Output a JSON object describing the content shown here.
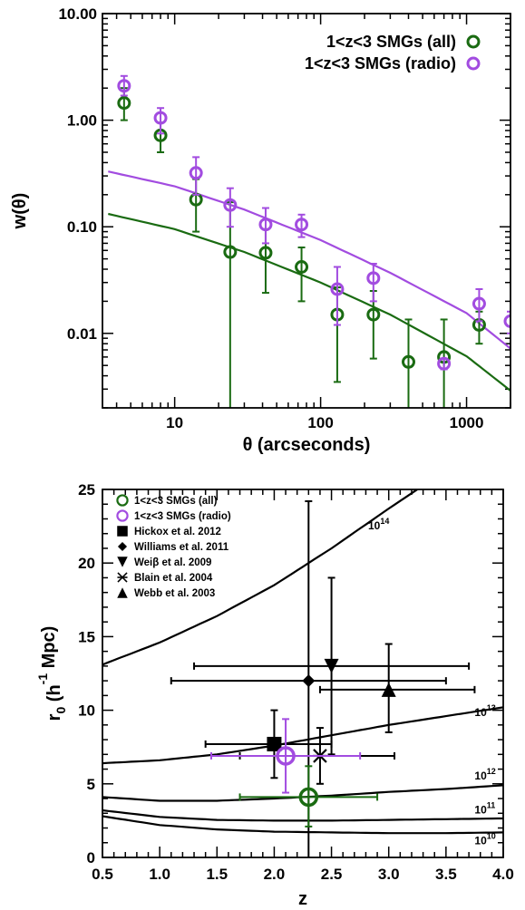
{
  "chart_data": [
    {
      "type": "scatter",
      "xlabel": "θ (arcseconds)",
      "ylabel": "w(θ)",
      "xscale": "log",
      "yscale": "log",
      "xlim": [
        3.2,
        2000
      ],
      "ylim": [
        0.002,
        10
      ],
      "xticks": [
        {
          "v": 10,
          "label": "10"
        },
        {
          "v": 100,
          "label": "100"
        },
        {
          "v": 1000,
          "label": "1000"
        }
      ],
      "yticks": [
        {
          "v": 10,
          "label": "10.00"
        },
        {
          "v": 1,
          "label": "1.00"
        },
        {
          "v": 0.1,
          "label": "0.10"
        },
        {
          "v": 0.01,
          "label": "0.01"
        }
      ],
      "legend_position": "top-right",
      "series": [
        {
          "name": "1<z<3 SMGs (all)",
          "color": "#1a6b12",
          "points": [
            {
              "x": 4.5,
              "y": 1.45,
              "ylo": 1.0,
              "yhi": 2.0
            },
            {
              "x": 8.0,
              "y": 0.72,
              "ylo": 0.5,
              "yhi": 0.95
            },
            {
              "x": 14.0,
              "y": 0.18,
              "ylo": 0.09,
              "yhi": 0.28
            },
            {
              "x": 24.0,
              "y": 0.058,
              "ylo": 0.002,
              "yhi": 0.17
            },
            {
              "x": 42.0,
              "y": 0.057,
              "ylo": 0.024,
              "yhi": 0.095
            },
            {
              "x": 74.0,
              "y": 0.042,
              "ylo": 0.02,
              "yhi": 0.064
            },
            {
              "x": 130.0,
              "y": 0.015,
              "ylo": 0.0035,
              "yhi": 0.027
            },
            {
              "x": 230.0,
              "y": 0.015,
              "ylo": 0.0058,
              "yhi": 0.025
            },
            {
              "x": 400.0,
              "y": 0.0054,
              "ylo": 0.002,
              "yhi": 0.0135
            },
            {
              "x": 700.0,
              "y": 0.006,
              "ylo": 0.002,
              "yhi": 0.0135
            },
            {
              "x": 1220.0,
              "y": 0.012,
              "ylo": 0.008,
              "yhi": 0.016
            }
          ],
          "model": [
            [
              3.5,
              0.132
            ],
            [
              10,
              0.095
            ],
            [
              30,
              0.058
            ],
            [
              100,
              0.03
            ],
            [
              300,
              0.015
            ],
            [
              1000,
              0.0061
            ],
            [
              2000,
              0.0029
            ]
          ]
        },
        {
          "name": "1<z<3 SMGs (radio)",
          "color": "#a24ce0",
          "points": [
            {
              "x": 4.5,
              "y": 2.1,
              "ylo": 1.7,
              "yhi": 2.6
            },
            {
              "x": 8.0,
              "y": 1.05,
              "ylo": 0.75,
              "yhi": 1.3
            },
            {
              "x": 14.0,
              "y": 0.32,
              "ylo": 0.2,
              "yhi": 0.45
            },
            {
              "x": 24.0,
              "y": 0.16,
              "ylo": 0.1,
              "yhi": 0.23
            },
            {
              "x": 42.0,
              "y": 0.105,
              "ylo": 0.07,
              "yhi": 0.15
            },
            {
              "x": 74.0,
              "y": 0.105,
              "ylo": 0.08,
              "yhi": 0.13
            },
            {
              "x": 130.0,
              "y": 0.026,
              "ylo": 0.012,
              "yhi": 0.042
            },
            {
              "x": 230.0,
              "y": 0.033,
              "ylo": 0.02,
              "yhi": 0.045
            },
            {
              "x": 700.0,
              "y": 0.0052,
              "ylo": 0.0046,
              "yhi": 0.0058
            },
            {
              "x": 1220.0,
              "y": 0.019,
              "ylo": 0.013,
              "yhi": 0.026
            },
            {
              "x": 2000.0,
              "y": 0.013,
              "ylo": 0.01,
              "yhi": 0.016
            }
          ],
          "model": [
            [
              3.5,
              0.33
            ],
            [
              10,
              0.24
            ],
            [
              30,
              0.145
            ],
            [
              100,
              0.075
            ],
            [
              300,
              0.037
            ],
            [
              1000,
              0.0155
            ],
            [
              2000,
              0.0072
            ]
          ]
        }
      ]
    },
    {
      "type": "scatter",
      "xlabel": "z",
      "ylabel": "r",
      "ylabel_sub": "0",
      "ylabel_rest": " (h",
      "ylabel_sup": "-1",
      "ylabel_tail": " Mpc)",
      "xlim": [
        0.5,
        4.0
      ],
      "ylim": [
        0,
        25
      ],
      "xticks": [
        {
          "v": 0.5,
          "label": "0.5"
        },
        {
          "v": 1.0,
          "label": "1.0"
        },
        {
          "v": 1.5,
          "label": "1.5"
        },
        {
          "v": 2.0,
          "label": "2.0"
        },
        {
          "v": 2.5,
          "label": "2.5"
        },
        {
          "v": 3.0,
          "label": "3.0"
        },
        {
          "v": 3.5,
          "label": "3.5"
        },
        {
          "v": 4.0,
          "label": "4.0"
        }
      ],
      "yticks": [
        {
          "v": 0,
          "label": "0"
        },
        {
          "v": 5,
          "label": "5"
        },
        {
          "v": 10,
          "label": "10"
        },
        {
          "v": 15,
          "label": "15"
        },
        {
          "v": 20,
          "label": "20"
        },
        {
          "v": 25,
          "label": "25"
        }
      ],
      "legend_position": "top-left",
      "halo_curves": [
        {
          "base": "10",
          "exp": "14",
          "label_at": [
            2.82,
            22.3
          ],
          "points": [
            [
              0.5,
              13.1
            ],
            [
              1.0,
              14.6
            ],
            [
              1.5,
              16.4
            ],
            [
              2.0,
              18.5
            ],
            [
              2.5,
              21.0
            ],
            [
              3.0,
              23.7
            ],
            [
              3.5,
              26.3
            ]
          ]
        },
        {
          "base": "10",
          "exp": "13",
          "label_at": [
            3.75,
            9.6
          ],
          "points": [
            [
              0.5,
              6.4
            ],
            [
              1.0,
              6.6
            ],
            [
              1.5,
              7.0
            ],
            [
              2.0,
              7.6
            ],
            [
              2.5,
              8.3
            ],
            [
              3.0,
              9.0
            ],
            [
              3.5,
              9.6
            ],
            [
              4.0,
              10.2
            ]
          ]
        },
        {
          "base": "10",
          "exp": "12",
          "label_at": [
            3.75,
            5.3
          ],
          "points": [
            [
              0.5,
              4.1
            ],
            [
              1.0,
              3.85
            ],
            [
              1.5,
              3.85
            ],
            [
              2.0,
              4.0
            ],
            [
              2.5,
              4.2
            ],
            [
              3.0,
              4.45
            ],
            [
              3.5,
              4.65
            ],
            [
              4.0,
              4.9
            ]
          ]
        },
        {
          "base": "10",
          "exp": "11",
          "label_at": [
            3.75,
            3.0
          ],
          "points": [
            [
              0.5,
              3.2
            ],
            [
              1.0,
              2.75
            ],
            [
              1.5,
              2.55
            ],
            [
              2.0,
              2.5
            ],
            [
              2.5,
              2.5
            ],
            [
              3.0,
              2.55
            ],
            [
              3.5,
              2.6
            ],
            [
              4.0,
              2.65
            ]
          ]
        },
        {
          "base": "10",
          "exp": "10",
          "label_at": [
            3.75,
            0.9
          ],
          "points": [
            [
              0.5,
              2.8
            ],
            [
              1.0,
              2.2
            ],
            [
              1.5,
              1.9
            ],
            [
              2.0,
              1.75
            ],
            [
              2.5,
              1.7
            ],
            [
              3.0,
              1.65
            ],
            [
              3.5,
              1.65
            ],
            [
              4.0,
              1.7
            ]
          ]
        }
      ],
      "series": [
        {
          "name": "1<z<3 SMGs (all)",
          "marker": "circle-big",
          "color": "#1a6b12",
          "x": 2.3,
          "y": 4.1,
          "xlo": 1.7,
          "xhi": 2.9,
          "ylo": 2.1,
          "yhi": 6.2
        },
        {
          "name": "1<z<3 SMGs (radio)",
          "marker": "circle-big",
          "color": "#a24ce0",
          "x": 2.1,
          "y": 6.9,
          "xlo": 1.45,
          "xhi": 2.75,
          "ylo": 4.4,
          "yhi": 9.4
        },
        {
          "name": "Hickox et al. 2012",
          "marker": "square",
          "color": "#000000",
          "x": 2.0,
          "y": 7.7,
          "xlo": 1.4,
          "xhi": 2.5,
          "ylo": 5.4,
          "yhi": 10.0
        },
        {
          "name": "Williams et al. 2011",
          "marker": "diamond",
          "color": "#000000",
          "x": 2.3,
          "y": 12.0,
          "xlo": 1.1,
          "xhi": 3.5,
          "ylo": 0.0,
          "yhi": 24.2
        },
        {
          "name": "Weiβ et al. 2009",
          "marker": "triangle-down",
          "color": "#000000",
          "x": 2.5,
          "y": 13.0,
          "xlo": 1.3,
          "xhi": 3.7,
          "ylo": 7.0,
          "yhi": 19.0
        },
        {
          "name": "Blain et al. 2004",
          "marker": "asterisk",
          "color": "#000000",
          "x": 2.4,
          "y": 6.9,
          "xlo": 1.7,
          "xhi": 3.05,
          "ylo": 5.0,
          "yhi": 8.8
        },
        {
          "name": "Webb et al. 2003",
          "marker": "triangle-up",
          "color": "#000000",
          "x": 3.0,
          "y": 11.4,
          "xlo": 2.4,
          "xhi": 3.75,
          "ylo": 8.5,
          "yhi": 14.5
        }
      ]
    }
  ]
}
